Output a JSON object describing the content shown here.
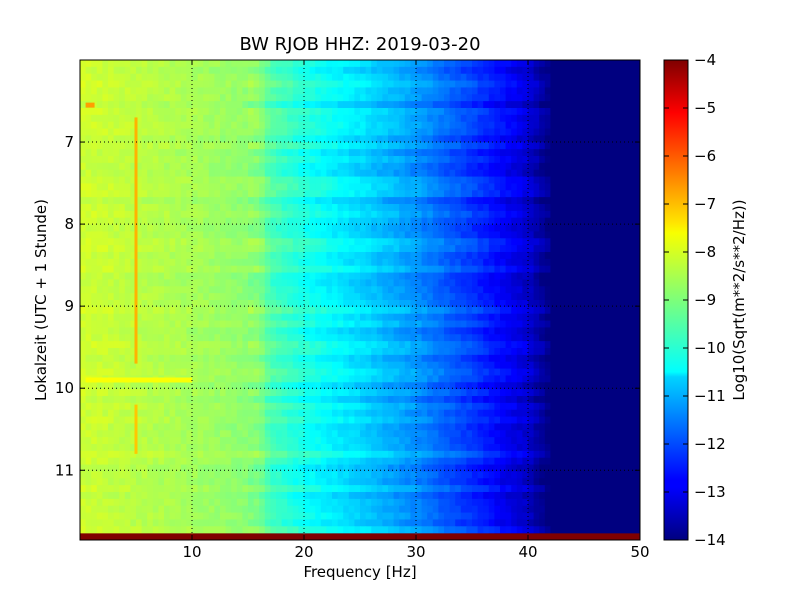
{
  "chart_data": {
    "type": "heatmap",
    "title": "BW RJOB HHZ: 2019-03-20",
    "xlabel": "Frequency [Hz]",
    "ylabel": "Lokalzeit (UTC + 1 Stunde)",
    "xlim": [
      0,
      50
    ],
    "ylim": [
      6.0,
      11.85
    ],
    "y_inverted": true,
    "x_ticks": [
      10,
      20,
      30,
      40,
      50
    ],
    "x_tick_labels": [
      "10",
      "20",
      "30",
      "40",
      "50"
    ],
    "y_ticks": [
      7,
      8,
      9,
      10,
      11
    ],
    "y_tick_labels": [
      "7",
      "8",
      "9",
      "10",
      "11"
    ],
    "grid": true,
    "colormap": "jet",
    "colorbar": {
      "label": "Log10(Sqrt(m**2/s**2/Hz))",
      "range": [
        -14,
        -4
      ],
      "ticks": [
        -4,
        -5,
        -6,
        -7,
        -8,
        -9,
        -10,
        -11,
        -12,
        -13,
        -14
      ],
      "tick_labels": [
        "−4",
        "−5",
        "−6",
        "−7",
        "−8",
        "−9",
        "−10",
        "−11",
        "−12",
        "−13",
        "−14"
      ]
    },
    "spectral_profile": {
      "frequency_hz": [
        0,
        5,
        10,
        16,
        17,
        20,
        25,
        30,
        35,
        38,
        40,
        42,
        50
      ],
      "log10_psd": [
        -8.2,
        -8.4,
        -8.6,
        -8.9,
        -9.5,
        -10.0,
        -10.6,
        -11.3,
        -12.2,
        -12.8,
        -13.2,
        -14,
        -14
      ]
    },
    "features": [
      {
        "frequency_hz": 5.0,
        "time_start": 6.7,
        "time_end": 9.7,
        "log10_psd": -7.0
      },
      {
        "frequency_hz": 5.0,
        "time_start": 10.2,
        "time_end": 10.8,
        "log10_psd": -7.2
      },
      {
        "time": 9.9,
        "frequency_start": 0.5,
        "frequency_end": 10.0,
        "log10_psd": -7.8
      },
      {
        "time": 6.55,
        "frequency_start": 0.5,
        "frequency_end": 1.3,
        "log10_psd": -6.8
      },
      {
        "time": 11.83,
        "frequency_start": 0,
        "frequency_end": 50,
        "log10_psd": -4.0
      }
    ]
  }
}
